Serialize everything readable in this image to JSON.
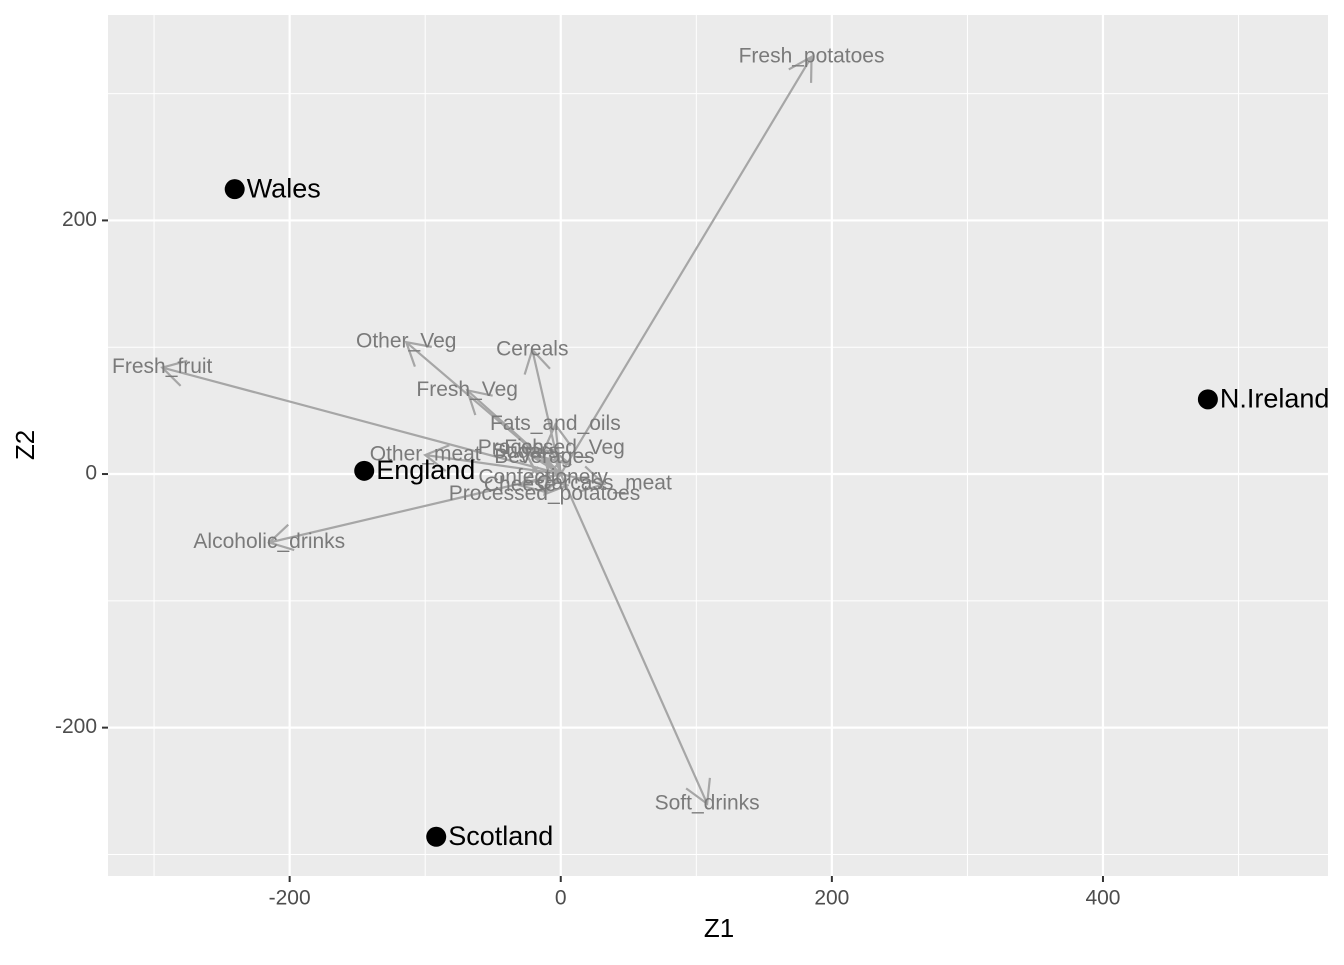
{
  "chart_data": {
    "type": "biplot",
    "x_label": "Z1",
    "y_label": "Z2",
    "xlim": [
      -334,
      566
    ],
    "ylim": [
      -317,
      362
    ],
    "xticks": [
      -200,
      0,
      200,
      400
    ],
    "yticks": [
      -200,
      0,
      200
    ],
    "x_minor_grid": [
      -300,
      -100,
      100,
      300,
      500
    ],
    "y_minor_grid": [
      -300,
      -100,
      100,
      300
    ],
    "grid": true,
    "points": {
      "color": "#000000",
      "labels": [
        "England",
        "Wales",
        "Scotland",
        "N.Ireland"
      ],
      "x": [
        -144.99,
        -240.53,
        -91.87,
        477.39
      ],
      "y": [
        2.53,
        224.65,
        -286.08,
        58.9
      ]
    },
    "loadings": {
      "color": "#a6a6a6",
      "labels": [
        "Cheese",
        "Carcass_meat",
        "Other_meat",
        "Fish",
        "Fats_and_oils",
        "Sugars",
        "Fresh_potatoes",
        "Fresh_Veg",
        "Other_Veg",
        "Processed_potatoes",
        "Processed_Veg",
        "Fresh_fruit",
        "Cereals",
        "Beverages",
        "Soft_drinks",
        "Alcoholic_drinks",
        "Confectionery"
      ],
      "x": [
        -30,
        32,
        -100,
        -27,
        -4,
        -26,
        185,
        -69,
        -114,
        -12,
        -7,
        -294,
        -21,
        -12,
        108,
        -215,
        -13
      ],
      "y": [
        -9,
        -8,
        15,
        20,
        39,
        17,
        329,
        66,
        104,
        -16,
        20,
        84,
        98,
        13,
        -260,
        -54,
        -3
      ]
    }
  }
}
